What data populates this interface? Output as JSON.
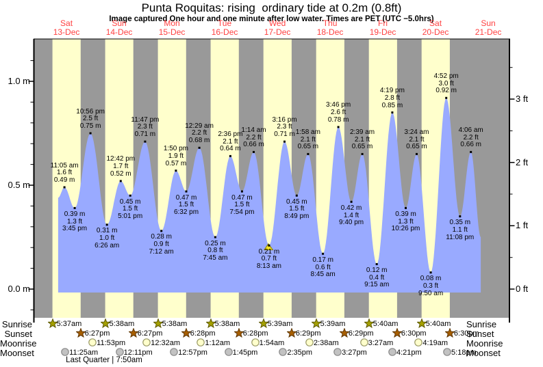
{
  "title": "Punta Roquitas: rising  ordinary tide at 0.2m (0.8ft)",
  "subtitle": "Image captured One hour and one minute after low water. Times are PET (UTC −5.0hrs)",
  "days": [
    {
      "name": "Sat",
      "date": "13-Dec"
    },
    {
      "name": "Sun",
      "date": "14-Dec"
    },
    {
      "name": "Mon",
      "date": "15-Dec"
    },
    {
      "name": "Tue",
      "date": "16-Dec"
    },
    {
      "name": "Wed",
      "date": "17-Dec"
    },
    {
      "name": "Thu",
      "date": "18-Dec"
    },
    {
      "name": "Fri",
      "date": "19-Dec"
    },
    {
      "name": "Sat",
      "date": "20-Dec"
    },
    {
      "name": "Sun",
      "date": "21-Dec"
    }
  ],
  "chart_data": {
    "type": "area",
    "title": "Punta Roquitas: rising  ordinary tide at 0.2m (0.8ft)",
    "y_axis_left_labels": [
      "1.0 m",
      "0.5 m",
      "0.0 m"
    ],
    "y_axis_right_labels": [
      "3 ft",
      "2 ft",
      "1 ft",
      "0 ft"
    ],
    "ylim_m": [
      -0.14,
      1.2
    ],
    "grid": false,
    "tide_events": [
      {
        "day": 0,
        "time": "11:05 am",
        "type": "high",
        "m": "0.49",
        "ft": "1.6"
      },
      {
        "day": 0,
        "time": "3:45 pm",
        "type": "low",
        "m": "0.39",
        "ft": "1.3"
      },
      {
        "day": 0,
        "time": "10:56 pm",
        "type": "high",
        "m": "0.75",
        "ft": "2.5"
      },
      {
        "day": 1,
        "time": "6:26 am",
        "type": "low",
        "m": "0.31",
        "ft": "1.0"
      },
      {
        "day": 1,
        "time": "12:42 pm",
        "type": "high",
        "m": "0.52",
        "ft": "1.7"
      },
      {
        "day": 1,
        "time": "5:01 pm",
        "type": "low",
        "m": "0.45",
        "ft": "1.5"
      },
      {
        "day": 1,
        "time": "11:47 pm",
        "type": "high",
        "m": "0.71",
        "ft": "2.3"
      },
      {
        "day": 2,
        "time": "7:12 am",
        "type": "low",
        "m": "0.28",
        "ft": "0.9"
      },
      {
        "day": 2,
        "time": "1:50 pm",
        "type": "high",
        "m": "0.57",
        "ft": "1.9"
      },
      {
        "day": 2,
        "time": "6:32 pm",
        "type": "low",
        "m": "0.47",
        "ft": "1.5"
      },
      {
        "day": 3,
        "time": "12:29 am",
        "type": "high",
        "m": "0.68",
        "ft": "2.2"
      },
      {
        "day": 3,
        "time": "7:45 am",
        "type": "low",
        "m": "0.25",
        "ft": "0.8"
      },
      {
        "day": 3,
        "time": "2:36 pm",
        "type": "high",
        "m": "0.64",
        "ft": "2.1"
      },
      {
        "day": 3,
        "time": "7:54 pm",
        "type": "low",
        "m": "0.47",
        "ft": "1.5"
      },
      {
        "day": 4,
        "time": "1:14 am",
        "type": "high",
        "m": "0.66",
        "ft": "2.2"
      },
      {
        "day": 4,
        "time": "8:13 am",
        "type": "low",
        "m": "0.21",
        "ft": "0.7",
        "current": true
      },
      {
        "day": 4,
        "time": "3:16 pm",
        "type": "high",
        "m": "0.71",
        "ft": "2.3"
      },
      {
        "day": 4,
        "time": "8:49 pm",
        "type": "low",
        "m": "0.45",
        "ft": "1.5"
      },
      {
        "day": 5,
        "time": "1:58 am",
        "type": "high",
        "m": "0.65",
        "ft": "2.1"
      },
      {
        "day": 5,
        "time": "8:45 am",
        "type": "low",
        "m": "0.17",
        "ft": "0.6"
      },
      {
        "day": 5,
        "time": "3:46 pm",
        "type": "high",
        "m": "0.78",
        "ft": "2.6"
      },
      {
        "day": 5,
        "time": "9:40 pm",
        "type": "low",
        "m": "0.42",
        "ft": "1.4"
      },
      {
        "day": 6,
        "time": "2:39 am",
        "type": "high",
        "m": "0.65",
        "ft": "2.1"
      },
      {
        "day": 6,
        "time": "9:15 am",
        "type": "low",
        "m": "0.12",
        "ft": "0.4"
      },
      {
        "day": 6,
        "time": "4:19 pm",
        "type": "high",
        "m": "0.85",
        "ft": "2.8"
      },
      {
        "day": 6,
        "time": "10:26 pm",
        "type": "low",
        "m": "0.39",
        "ft": "1.3"
      },
      {
        "day": 7,
        "time": "3:24 am",
        "type": "high",
        "m": "0.65",
        "ft": "2.1"
      },
      {
        "day": 7,
        "time": "9:50 am",
        "type": "low",
        "m": "0.08",
        "ft": "0.3"
      },
      {
        "day": 7,
        "time": "4:52 pm",
        "type": "high",
        "m": "0.92",
        "ft": "3.0"
      },
      {
        "day": 7,
        "time": "11:08 pm",
        "type": "low",
        "m": "0.35",
        "ft": "1.1"
      },
      {
        "day": 8,
        "time": "4:06 am",
        "type": "high",
        "m": "0.66",
        "ft": "2.2"
      }
    ],
    "curve_start": {
      "day": 0,
      "hours": 8.2,
      "m": 0.44
    },
    "curve_end": {
      "day": 8,
      "hours": 8.6,
      "m": 0.25
    }
  },
  "astro": {
    "row_labels": [
      "Sunrise",
      "Sunset",
      "Moonrise",
      "Moonset"
    ],
    "sunrise": [
      {
        "day": 0,
        "time": "5:37am"
      },
      {
        "day": 1,
        "time": "5:38am"
      },
      {
        "day": 2,
        "time": "5:38am"
      },
      {
        "day": 3,
        "time": "5:38am"
      },
      {
        "day": 4,
        "time": "5:39am"
      },
      {
        "day": 5,
        "time": "5:39am"
      },
      {
        "day": 6,
        "time": "5:40am"
      },
      {
        "day": 7,
        "time": "5:40am"
      }
    ],
    "sunset": [
      {
        "day": 0,
        "time": "6:27pm"
      },
      {
        "day": 1,
        "time": "6:27pm"
      },
      {
        "day": 2,
        "time": "6:28pm"
      },
      {
        "day": 3,
        "time": "6:28pm"
      },
      {
        "day": 4,
        "time": "6:29pm"
      },
      {
        "day": 5,
        "time": "6:29pm"
      },
      {
        "day": 6,
        "time": "6:30pm"
      },
      {
        "day": 7,
        "time": "6:30pm"
      }
    ],
    "moonrise": [
      {
        "day": 0,
        "time": "11:53pm"
      },
      {
        "day": 2,
        "time": "12:32am"
      },
      {
        "day": 3,
        "time": "1:12am"
      },
      {
        "day": 4,
        "time": "1:54am"
      },
      {
        "day": 5,
        "time": "2:38am"
      },
      {
        "day": 6,
        "time": "3:27am"
      },
      {
        "day": 7,
        "time": "4:19am"
      }
    ],
    "moonset": [
      {
        "day": 0,
        "time": "11:25am"
      },
      {
        "day": 1,
        "time": "12:11pm"
      },
      {
        "day": 2,
        "time": "12:57pm"
      },
      {
        "day": 3,
        "time": "1:45pm"
      },
      {
        "day": 4,
        "time": "2:35pm"
      },
      {
        "day": 5,
        "time": "3:27pm"
      },
      {
        "day": 6,
        "time": "4:21pm"
      },
      {
        "day": 7,
        "time": "5:18pm"
      }
    ],
    "moon_phase_note": "Last Quarter | 7:50am"
  },
  "colors": {
    "night_band": "#999999",
    "day_band": "#ffffcc",
    "tide_fill": "#99aaff",
    "day_label_red": "#ff4040",
    "sunrise_star": "#a4a000",
    "sunset_star": "#a85f00",
    "moonrise_circle": "#ffffcc",
    "moonset_circle": "#c2c2c2",
    "current_marker": "#f2e224",
    "axis": "#000000"
  }
}
